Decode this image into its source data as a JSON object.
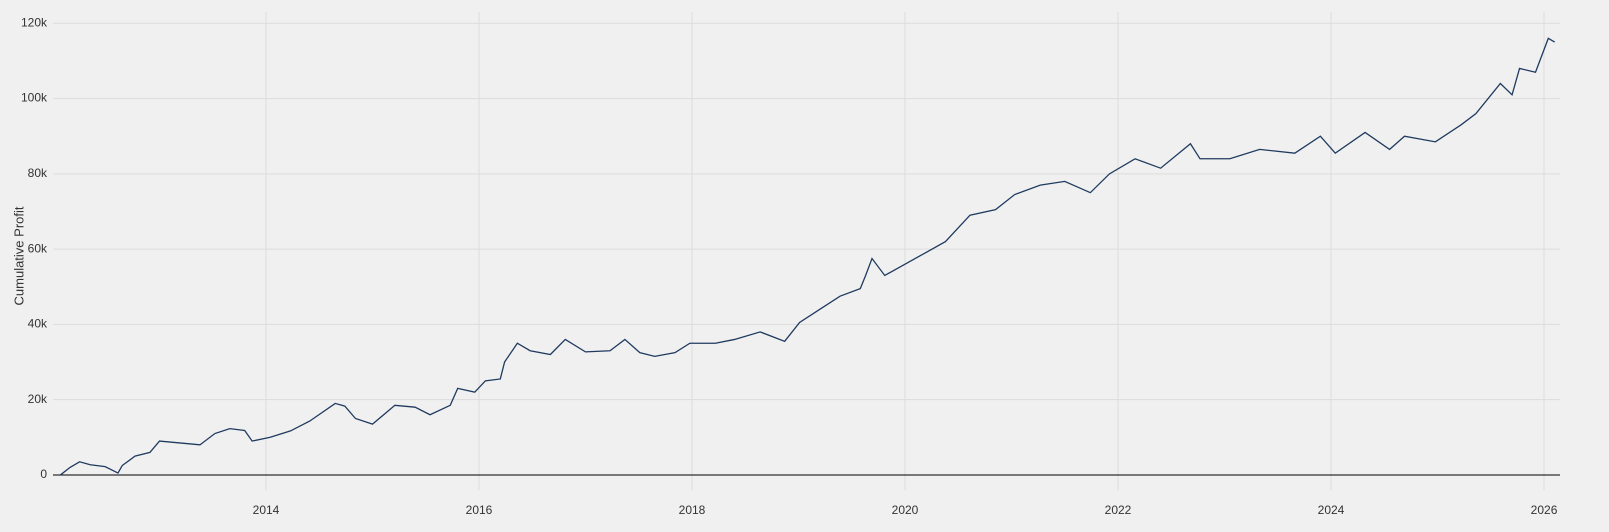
{
  "chart_data": {
    "type": "line",
    "y_label": "Cumulative Profit",
    "x": [
      2012.07,
      2012.16,
      2012.25,
      2012.35,
      2012.49,
      2012.61,
      2012.65,
      2012.77,
      2012.91,
      2013.0,
      2013.19,
      2013.38,
      2013.52,
      2013.66,
      2013.8,
      2013.87,
      2014.04,
      2014.23,
      2014.41,
      2014.65,
      2014.74,
      2014.84,
      2015.0,
      2015.21,
      2015.4,
      2015.54,
      2015.73,
      2015.8,
      2015.96,
      2016.06,
      2016.2,
      2016.24,
      2016.36,
      2016.48,
      2016.67,
      2016.81,
      2017.0,
      2017.23,
      2017.37,
      2017.51,
      2017.65,
      2017.84,
      2017.98,
      2018.22,
      2018.4,
      2018.64,
      2018.87,
      2019.01,
      2019.2,
      2019.39,
      2019.58,
      2019.63,
      2019.69,
      2019.81,
      2020.0,
      2020.19,
      2020.38,
      2020.61,
      2020.85,
      2021.03,
      2021.27,
      2021.5,
      2021.74,
      2021.92,
      2022.16,
      2022.4,
      2022.68,
      2022.77,
      2023.05,
      2023.33,
      2023.66,
      2023.9,
      2024.04,
      2024.32,
      2024.55,
      2024.69,
      2024.98,
      2025.22,
      2025.36,
      2025.59,
      2025.7,
      2025.77,
      2025.92,
      2026.04,
      2026.1
    ],
    "series": [
      {
        "name": "Cumulative Profit",
        "color": "#1f3a5f",
        "values": [
          0,
          2000,
          3500,
          2700,
          2200,
          500,
          2500,
          5000,
          6000,
          9000,
          8500,
          8000,
          11000,
          12300,
          11800,
          9000,
          10000,
          11700,
          14300,
          19000,
          18300,
          15000,
          13500,
          18500,
          18000,
          16000,
          18500,
          23000,
          22000,
          25000,
          25500,
          30000,
          35000,
          33000,
          32000,
          36000,
          32700,
          33000,
          36000,
          32500,
          31500,
          32500,
          35000,
          35000,
          36000,
          38000,
          35500,
          40500,
          44000,
          47500,
          49500,
          53000,
          57500,
          53000,
          56000,
          59000,
          62000,
          69000,
          70500,
          74500,
          77000,
          78000,
          75000,
          80000,
          84000,
          81500,
          88000,
          84000,
          84000,
          86500,
          85500,
          90000,
          85500,
          91000,
          86500,
          90000,
          88500,
          93000,
          96000,
          104000,
          101000,
          108000,
          107000,
          116000,
          115000
        ]
      }
    ],
    "xlim": [
      2012.0,
      2026.15
    ],
    "xticks": [
      2014,
      2016,
      2018,
      2020,
      2022,
      2024,
      2026
    ],
    "ylim": [
      -4000,
      123000
    ],
    "yticks": [
      {
        "value": 0,
        "label": "0"
      },
      {
        "value": 20000,
        "label": "20k"
      },
      {
        "value": 40000,
        "label": "40k"
      },
      {
        "value": 60000,
        "label": "60k"
      },
      {
        "value": 80000,
        "label": "80k"
      },
      {
        "value": 100000,
        "label": "100k"
      },
      {
        "value": 120000,
        "label": "120k"
      }
    ],
    "grid": true
  }
}
